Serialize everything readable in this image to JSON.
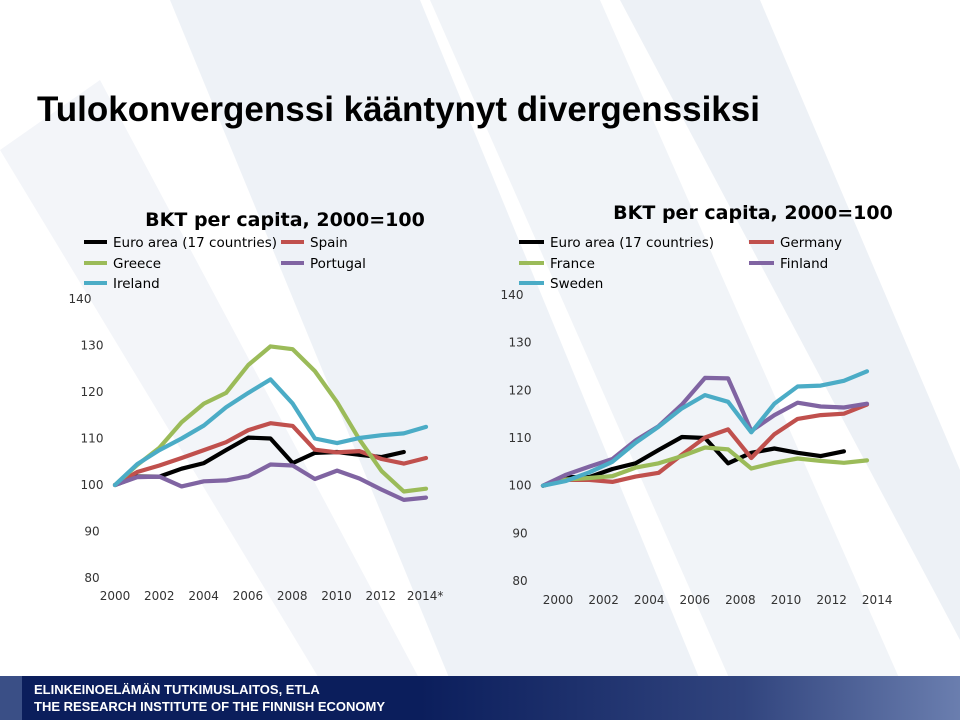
{
  "title": "Tulokonvergenssi kääntynyt divergenssiksi",
  "footer": {
    "line1": "ELINKEINOELÄMÄN TUTKIMUSLAITOS, ETLA",
    "line2": "THE RESEARCH INSTITUTE OF THE FINNISH ECONOMY"
  },
  "chart_data": [
    {
      "type": "line",
      "title": "BKT per capita, 2000=100",
      "x": [
        2000,
        2001,
        2002,
        2003,
        2004,
        2005,
        2006,
        2007,
        2008,
        2009,
        2010,
        2011,
        2012,
        2013,
        2014
      ],
      "x_tick_labels": [
        "2000",
        "2002",
        "2004",
        "2006",
        "2008",
        "2010",
        "2012",
        "2014*"
      ],
      "y_tick_labels": [
        "80",
        "90",
        "100",
        "110",
        "120",
        "130",
        "140"
      ],
      "ylim": [
        80,
        140
      ],
      "legend_position": "top",
      "series": [
        {
          "name": "Euro area (17 countries)",
          "color": "#000000",
          "values": [
            100,
            101.8,
            101.8,
            103.5,
            104.7,
            107.5,
            110.2,
            110,
            104.7,
            106.9,
            107.1,
            106.5,
            106.0,
            107.1,
            null
          ]
        },
        {
          "name": "Spain",
          "color": "#c0504d",
          "values": [
            100,
            102.8,
            104.2,
            105.8,
            107.5,
            109.2,
            111.8,
            113.3,
            112.7,
            107.6,
            107.0,
            107.3,
            105.6,
            104.6,
            105.8
          ]
        },
        {
          "name": "Greece",
          "color": "#9bbb59",
          "values": [
            100,
            104.3,
            108.0,
            113.5,
            117.5,
            119.8,
            125.8,
            129.8,
            129.2,
            124.5,
            117.8,
            109.8,
            103.0,
            98.6,
            99.2
          ]
        },
        {
          "name": "Portugal",
          "color": "#8064a2",
          "values": [
            100,
            101.7,
            101.8,
            99.7,
            100.8,
            101.0,
            101.9,
            104.4,
            104.2,
            101.3,
            103.1,
            101.4,
            99.0,
            96.8,
            97.3
          ]
        },
        {
          "name": "Ireland",
          "color": "#4bacc6",
          "values": [
            100,
            104.5,
            107.5,
            110.0,
            112.8,
            116.7,
            119.8,
            122.7,
            117.5,
            110.0,
            109.0,
            110.1,
            110.7,
            111.1,
            112.5
          ]
        }
      ]
    },
    {
      "type": "line",
      "title": "BKT per capita, 2000=100",
      "x": [
        2000,
        2001,
        2002,
        2003,
        2004,
        2005,
        2006,
        2007,
        2008,
        2009,
        2010,
        2011,
        2012,
        2013,
        2014
      ],
      "x_tick_labels": [
        "2000",
        "2002",
        "2004",
        "2006",
        "2008",
        "2010",
        "2012",
        "2014"
      ],
      "y_tick_labels": [
        "80",
        "90",
        "100",
        "110",
        "120",
        "130",
        "140"
      ],
      "ylim": [
        80,
        140
      ],
      "legend_position": "top",
      "series": [
        {
          "name": "Euro area (17 countries)",
          "color": "#000000",
          "values": [
            100,
            101.8,
            101.8,
            103.5,
            104.7,
            107.5,
            110.2,
            110,
            104.7,
            106.9,
            107.8,
            106.9,
            106.2,
            107.2,
            null
          ]
        },
        {
          "name": "Germany",
          "color": "#c0504d",
          "values": [
            100,
            101.2,
            101.2,
            100.8,
            101.9,
            102.7,
            106.5,
            110.1,
            111.8,
            105.8,
            110.8,
            114.0,
            114.8,
            115.1,
            117.0
          ]
        },
        {
          "name": "France",
          "color": "#9bbb59",
          "values": [
            100,
            101.3,
            101.6,
            102.0,
            103.8,
            104.7,
            106.2,
            108.0,
            107.6,
            103.6,
            104.8,
            105.7,
            105.2,
            104.8,
            105.3
          ]
        },
        {
          "name": "Finland",
          "color": "#8064a2",
          "values": [
            100,
            102.3,
            104.0,
            105.6,
            109.5,
            112.5,
            117.0,
            122.6,
            122.5,
            111.5,
            114.8,
            117.4,
            116.6,
            116.4,
            117.2
          ]
        },
        {
          "name": "Sweden",
          "color": "#4bacc6",
          "values": [
            100,
            101.0,
            102.8,
            105.0,
            109.0,
            112.4,
            116.2,
            119.0,
            117.6,
            111.2,
            117.2,
            120.8,
            121.0,
            122.0,
            124.0
          ]
        }
      ]
    }
  ]
}
